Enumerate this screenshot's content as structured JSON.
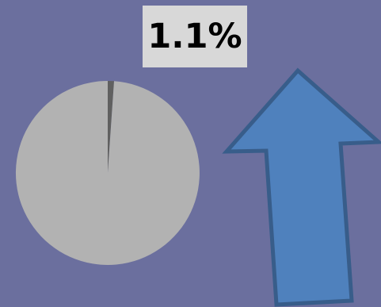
{
  "chart_data": {
    "type": "pie",
    "title": "",
    "slices": [
      {
        "label": "",
        "value": 1.1
      },
      {
        "label": "",
        "value": 98.9
      }
    ],
    "data_label": "1.1%"
  },
  "indicator": {
    "direction": "up",
    "icon": "up-arrow-icon"
  },
  "colors": {
    "background": "#6b6f9e",
    "slice_highlight": "#606060",
    "slice_rest": "#b2b2b2",
    "label_box": "#d8d8d8",
    "label_text": "#000000",
    "arrow_fill": "#4f81bd",
    "arrow_stroke": "#385d8a"
  }
}
